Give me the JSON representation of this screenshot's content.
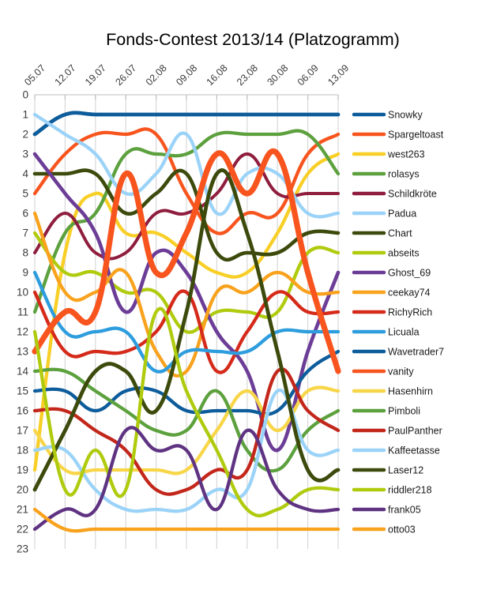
{
  "chart_data": {
    "type": "line",
    "subtype": "bump-rank-chart",
    "title": "Fonds-Contest 2013/14 (Platzogramm)",
    "x": [
      "05.07",
      "12.07",
      "19.07",
      "26.07",
      "02.08",
      "09.08",
      "16.08",
      "23.08",
      "30.08",
      "06.09",
      "13.09"
    ],
    "y_ticks": [
      0,
      1,
      2,
      3,
      4,
      5,
      6,
      7,
      8,
      9,
      10,
      11,
      12,
      13,
      14,
      15,
      16,
      17,
      18,
      19,
      20,
      21,
      22,
      23
    ],
    "ylim": [
      0,
      23
    ],
    "y_inverted": true,
    "grid": "vertical-only",
    "legend_position": "right",
    "axis_color": "#3b3b3b",
    "grid_color": "#d8d8d8",
    "series": [
      {
        "name": "Snowky",
        "color": "#0d5c9b",
        "width": 4.8,
        "ranks": [
          2,
          1,
          1,
          1,
          1,
          1,
          1,
          1,
          1,
          1,
          1
        ]
      },
      {
        "name": "Spargeltoast",
        "color": "#f8541e",
        "width": 4.3,
        "ranks": [
          5,
          3,
          2,
          2,
          2,
          5,
          7,
          6,
          6,
          3,
          2
        ]
      },
      {
        "name": "west263",
        "color": "#f8cf27",
        "width": 4.3,
        "ranks": [
          19,
          8,
          5,
          7,
          7,
          8,
          9,
          9,
          7,
          4,
          3
        ]
      },
      {
        "name": "rolasys",
        "color": "#5da13e",
        "width": 4.3,
        "ranks": [
          11,
          7,
          6,
          3,
          3,
          3,
          2,
          2,
          2,
          2,
          4
        ]
      },
      {
        "name": "Schildkröte",
        "color": "#8f1d3e",
        "width": 4.0,
        "ranks": [
          8,
          6,
          8,
          8,
          6,
          6,
          5,
          3,
          5,
          5,
          5
        ]
      },
      {
        "name": "Padua",
        "color": "#9bd3f8",
        "width": 4.3,
        "ranks": [
          1,
          2,
          3,
          5,
          4,
          2,
          6,
          4,
          4,
          6,
          6
        ]
      },
      {
        "name": "Chart",
        "color": "#3c4a0c",
        "width": 4.6,
        "ranks": [
          4,
          4,
          4,
          6,
          5,
          4,
          8,
          8,
          8,
          7,
          7
        ]
      },
      {
        "name": "abseits",
        "color": "#b0cb0e",
        "width": 4.3,
        "ranks": [
          7,
          9,
          9,
          10,
          10,
          12,
          11,
          11,
          11,
          8,
          8
        ]
      },
      {
        "name": "Ghost_69",
        "color": "#6c3d97",
        "width": 4.6,
        "ranks": [
          3,
          5,
          7,
          11,
          8,
          9,
          12,
          14,
          18,
          13,
          9
        ]
      },
      {
        "name": "ceekay74",
        "color": "#f8a21d",
        "width": 4.3,
        "ranks": [
          6,
          10,
          10,
          9,
          13,
          14,
          10,
          10,
          9,
          10,
          10
        ]
      },
      {
        "name": "RichyRich",
        "color": "#d52a1a",
        "width": 4.3,
        "ranks": [
          10,
          13,
          13,
          13,
          12,
          10,
          14,
          12,
          10,
          11,
          11
        ]
      },
      {
        "name": "Licuala",
        "color": "#2e9dde",
        "width": 4.3,
        "ranks": [
          9,
          12,
          12,
          12,
          14,
          13,
          13,
          13,
          12,
          12,
          12
        ]
      },
      {
        "name": "Wavetrader7",
        "color": "#0d5c9b",
        "width": 4.3,
        "ranks": [
          15,
          15,
          16,
          15,
          15,
          16,
          16,
          16,
          16,
          14,
          13
        ]
      },
      {
        "name": "vanity",
        "color": "#f8541e",
        "width": 7.2,
        "ranks": [
          13,
          11,
          11,
          4,
          9,
          7,
          3,
          5,
          3,
          9,
          14
        ]
      },
      {
        "name": "Hasenhirn",
        "color": "#f8d64a",
        "width": 4.3,
        "ranks": [
          17,
          19,
          19,
          19,
          19,
          19,
          17,
          15,
          17,
          15,
          15
        ]
      },
      {
        "name": "Pimboli",
        "color": "#5da13e",
        "width": 4.3,
        "ranks": [
          14,
          14,
          15,
          16,
          17,
          17,
          15,
          18,
          19,
          17,
          16
        ]
      },
      {
        "name": "PaulPanther",
        "color": "#c3271b",
        "width": 4.3,
        "ranks": [
          16,
          16,
          17,
          18,
          20,
          20,
          19,
          19,
          14,
          16,
          17
        ]
      },
      {
        "name": "Kaffeetasse",
        "color": "#9bd3f8",
        "width": 4.3,
        "ranks": [
          18,
          18,
          20,
          21,
          21,
          21,
          20,
          20,
          15,
          18,
          18
        ]
      },
      {
        "name": "Laser12",
        "color": "#3c4a0c",
        "width": 4.8,
        "ranks": [
          20,
          17,
          14,
          14,
          16,
          11,
          4,
          7,
          13,
          19,
          19
        ]
      },
      {
        "name": "riddler218",
        "color": "#b0cb0e",
        "width": 4.3,
        "ranks": [
          12,
          20,
          18,
          20,
          11,
          15,
          18,
          21,
          21,
          20,
          20
        ]
      },
      {
        "name": "frank05",
        "color": "#5f3382",
        "width": 4.3,
        "ranks": [
          22,
          21,
          21,
          17,
          18,
          18,
          21,
          17,
          20,
          21,
          21
        ]
      },
      {
        "name": "otto03",
        "color": "#f8a21d",
        "width": 4.3,
        "ranks": [
          21,
          22,
          22,
          22,
          22,
          22,
          22,
          22,
          22,
          22,
          22
        ]
      }
    ]
  }
}
